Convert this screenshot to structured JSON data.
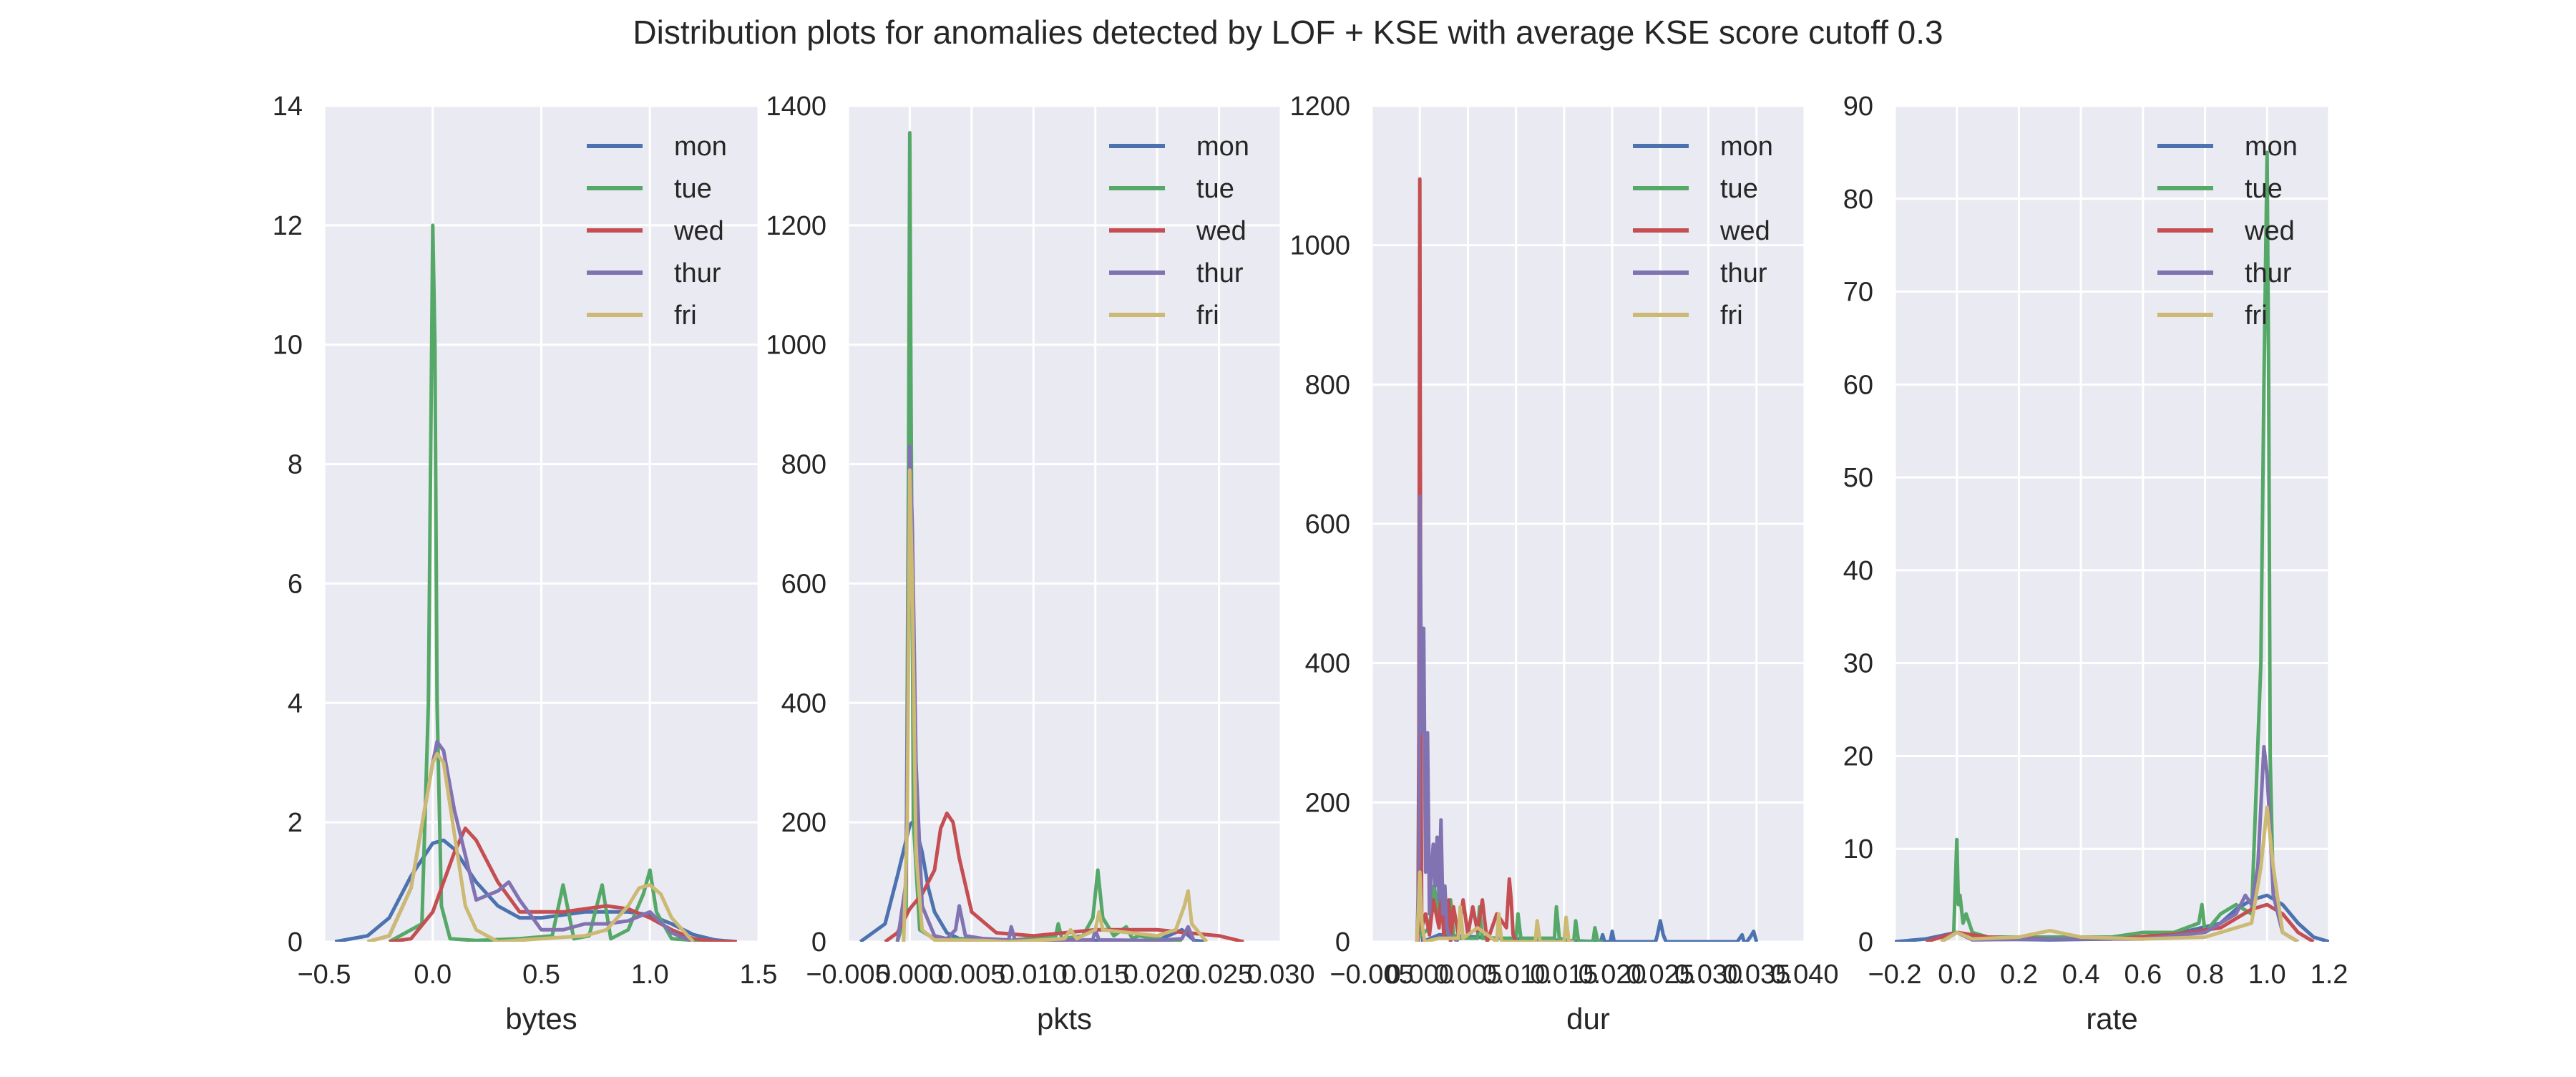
{
  "figure": {
    "title": "Distribution plots for anomalies detected by LOF + KSE with average KSE score cutoff 0.3"
  },
  "colors": {
    "plot_bg": "#eaeaf2",
    "grid": "#ffffff",
    "text": "#262626",
    "series": {
      "mon": "#4c72b0",
      "tue": "#55a868",
      "wed": "#c44e52",
      "thur": "#8172b2",
      "fri": "#ccb974"
    }
  },
  "chart_data": [
    {
      "type": "line",
      "xlabel": "bytes",
      "ylabel": "",
      "xlim": [
        -0.5,
        1.5
      ],
      "ylim": [
        0,
        14
      ],
      "xticks": [
        -0.5,
        0.0,
        0.5,
        1.0,
        1.5
      ],
      "xtick_labels": [
        "−0.5",
        "0.0",
        "0.5",
        "1.0",
        "1.5"
      ],
      "yticks": [
        0,
        2,
        4,
        6,
        8,
        10,
        12,
        14
      ],
      "ytick_labels": [
        "0",
        "2",
        "4",
        "6",
        "8",
        "10",
        "12",
        "14"
      ],
      "grid": true,
      "legend_position": "top-right",
      "series": [
        {
          "name": "mon",
          "x": [
            -0.45,
            -0.3,
            -0.2,
            -0.1,
            0.0,
            0.05,
            0.1,
            0.2,
            0.3,
            0.4,
            0.5,
            0.6,
            0.7,
            0.8,
            0.9,
            1.0,
            1.1,
            1.2,
            1.3,
            1.4
          ],
          "y": [
            0.0,
            0.1,
            0.4,
            1.1,
            1.65,
            1.7,
            1.55,
            1.0,
            0.6,
            0.4,
            0.4,
            0.45,
            0.5,
            0.5,
            0.5,
            0.45,
            0.3,
            0.12,
            0.03,
            0.0
          ]
        },
        {
          "name": "tue",
          "x": [
            -0.2,
            -0.05,
            -0.02,
            0.0,
            0.01,
            0.02,
            0.04,
            0.08,
            0.2,
            0.4,
            0.55,
            0.6,
            0.65,
            0.72,
            0.78,
            0.82,
            0.9,
            0.97,
            1.0,
            1.03,
            1.1,
            1.3
          ],
          "y": [
            0.0,
            0.3,
            4.0,
            12.0,
            10.0,
            4.0,
            0.6,
            0.05,
            0.02,
            0.05,
            0.1,
            0.95,
            0.05,
            0.1,
            0.95,
            0.05,
            0.2,
            0.8,
            1.2,
            0.5,
            0.05,
            0.0
          ]
        },
        {
          "name": "wed",
          "x": [
            -0.2,
            -0.1,
            0.0,
            0.1,
            0.15,
            0.2,
            0.3,
            0.4,
            0.5,
            0.6,
            0.7,
            0.8,
            0.9,
            1.0,
            1.1,
            1.2,
            1.3,
            1.4
          ],
          "y": [
            0.0,
            0.05,
            0.5,
            1.5,
            1.9,
            1.7,
            1.0,
            0.5,
            0.5,
            0.5,
            0.55,
            0.6,
            0.55,
            0.4,
            0.2,
            0.05,
            0.01,
            0.0
          ]
        },
        {
          "name": "thur",
          "x": [
            -0.3,
            -0.2,
            -0.1,
            0.0,
            0.02,
            0.05,
            0.1,
            0.2,
            0.3,
            0.35,
            0.4,
            0.5,
            0.6,
            0.7,
            0.8,
            0.9,
            1.0,
            1.1,
            1.2
          ],
          "y": [
            0.0,
            0.1,
            0.9,
            3.0,
            3.35,
            3.2,
            2.2,
            0.7,
            0.85,
            1.0,
            0.7,
            0.2,
            0.2,
            0.3,
            0.3,
            0.35,
            0.5,
            0.15,
            0.0
          ]
        },
        {
          "name": "fri",
          "x": [
            -0.3,
            -0.2,
            -0.1,
            0.0,
            0.02,
            0.05,
            0.1,
            0.15,
            0.2,
            0.3,
            0.5,
            0.7,
            0.8,
            0.9,
            0.95,
            1.0,
            1.05,
            1.1,
            1.2
          ],
          "y": [
            0.0,
            0.1,
            0.9,
            3.0,
            3.15,
            3.0,
            1.8,
            0.6,
            0.2,
            0.0,
            0.05,
            0.1,
            0.2,
            0.6,
            0.9,
            0.95,
            0.8,
            0.4,
            0.0
          ]
        }
      ]
    },
    {
      "type": "line",
      "xlabel": "pkts",
      "ylabel": "",
      "xlim": [
        -0.005,
        0.03
      ],
      "ylim": [
        0,
        1400
      ],
      "xticks": [
        -0.005,
        0.0,
        0.005,
        0.01,
        0.015,
        0.02,
        0.025,
        0.03
      ],
      "xtick_labels": [
        "−0.005",
        "0.000",
        "0.005",
        "0.010",
        "0.015",
        "0.020",
        "0.025",
        "0.030"
      ],
      "yticks": [
        0,
        200,
        400,
        600,
        800,
        1000,
        1200,
        1400
      ],
      "ytick_labels": [
        "0",
        "200",
        "400",
        "600",
        "800",
        "1000",
        "1200",
        "1400"
      ],
      "grid": true,
      "legend_position": "top-right",
      "series": [
        {
          "name": "mon",
          "x": [
            -0.004,
            -0.002,
            -0.001,
            0.0,
            0.0002,
            0.0005,
            0.001,
            0.0015,
            0.002,
            0.003,
            0.004,
            0.006,
            0.008,
            0.01,
            0.015,
            0.02,
            0.022,
            0.023,
            0.024
          ],
          "y": [
            0,
            30,
            110,
            195,
            200,
            190,
            150,
            90,
            50,
            15,
            5,
            2,
            1,
            1,
            2,
            2,
            20,
            2,
            0
          ]
        },
        {
          "name": "tue",
          "x": [
            -0.001,
            -0.0003,
            -0.0001,
            0.0,
            0.0001,
            0.0003,
            0.0008,
            0.002,
            0.008,
            0.0118,
            0.012,
            0.0123,
            0.014,
            0.0148,
            0.0152,
            0.0156,
            0.0165,
            0.0175,
            0.018,
            0.0185,
            0.02,
            0.022
          ],
          "y": [
            0,
            50,
            800,
            1355,
            900,
            200,
            20,
            5,
            2,
            10,
            30,
            5,
            10,
            40,
            120,
            40,
            10,
            25,
            5,
            10,
            5,
            0
          ]
        },
        {
          "name": "wed",
          "x": [
            -0.002,
            -0.001,
            0.0,
            0.001,
            0.002,
            0.0025,
            0.003,
            0.0035,
            0.004,
            0.005,
            0.007,
            0.01,
            0.015,
            0.02,
            0.025,
            0.027
          ],
          "y": [
            0,
            15,
            55,
            80,
            120,
            190,
            215,
            200,
            140,
            50,
            15,
            10,
            20,
            20,
            10,
            0
          ]
        },
        {
          "name": "thur",
          "x": [
            -0.001,
            -0.0003,
            0.0,
            0.0002,
            0.0005,
            0.001,
            0.002,
            0.003,
            0.0037,
            0.004,
            0.0045,
            0.006,
            0.008,
            0.0082,
            0.0085,
            0.01,
            0.0148,
            0.015,
            0.0153,
            0.02,
            0.022,
            0.0225,
            0.023
          ],
          "y": [
            0,
            100,
            830,
            700,
            300,
            60,
            10,
            5,
            20,
            60,
            10,
            5,
            3,
            25,
            3,
            2,
            3,
            20,
            3,
            2,
            5,
            25,
            0
          ]
        },
        {
          "name": "fri",
          "x": [
            -0.0005,
            -0.0002,
            0.0,
            0.0002,
            0.0005,
            0.001,
            0.002,
            0.006,
            0.008,
            0.0125,
            0.013,
            0.0135,
            0.015,
            0.0153,
            0.0156,
            0.02,
            0.0215,
            0.0222,
            0.0225,
            0.0228,
            0.024
          ],
          "y": [
            0,
            200,
            790,
            600,
            150,
            20,
            3,
            2,
            0,
            5,
            20,
            5,
            20,
            50,
            20,
            10,
            20,
            60,
            85,
            30,
            0
          ]
        }
      ]
    },
    {
      "type": "line",
      "xlabel": "dur",
      "ylabel": "",
      "xlim": [
        -0.005,
        0.04
      ],
      "ylim": [
        0,
        1200
      ],
      "xticks": [
        -0.005,
        0.0,
        0.005,
        0.01,
        0.015,
        0.02,
        0.025,
        0.03,
        0.035,
        0.04
      ],
      "xtick_labels": [
        "−0.005",
        "0.000",
        "0.005",
        "0.010",
        "0.015",
        "0.020",
        "0.025",
        "0.030",
        "0.035",
        "0.040"
      ],
      "yticks": [
        0,
        200,
        400,
        600,
        800,
        1000,
        1200
      ],
      "ytick_labels": [
        "0",
        "200",
        "400",
        "600",
        "800",
        "1000",
        "1200"
      ],
      "grid": true,
      "legend_position": "top-right",
      "series": [
        {
          "name": "mon",
          "x": [
            -0.0003,
            -0.0001,
            0.0,
            0.0001,
            0.0003,
            0.002,
            0.008,
            0.0188,
            0.019,
            0.0192,
            0.0198,
            0.02,
            0.0202,
            0.0245,
            0.0247,
            0.025,
            0.0253,
            0.0256,
            0.026,
            0.033,
            0.0335,
            0.0337,
            0.034,
            0.0345,
            0.0347,
            0.035
          ],
          "y": [
            0,
            20,
            100,
            20,
            0,
            10,
            5,
            0,
            10,
            0,
            0,
            15,
            0,
            0,
            10,
            30,
            10,
            0,
            0,
            0,
            10,
            0,
            0,
            10,
            15,
            0
          ]
        },
        {
          "name": "tue",
          "x": [
            -0.0003,
            0.0,
            0.0002,
            0.001,
            0.0015,
            0.002,
            0.0022,
            0.0025,
            0.003,
            0.0032,
            0.0035,
            0.004,
            0.006,
            0.0062,
            0.0065,
            0.01,
            0.0102,
            0.0105,
            0.014,
            0.0142,
            0.0145,
            0.016,
            0.0162,
            0.0165,
            0.018,
            0.0182,
            0.0185,
            0.019
          ],
          "y": [
            0,
            60,
            10,
            20,
            80,
            30,
            90,
            20,
            10,
            60,
            10,
            5,
            5,
            50,
            5,
            5,
            40,
            5,
            5,
            50,
            5,
            0,
            30,
            0,
            0,
            20,
            0,
            0
          ]
        },
        {
          "name": "wed",
          "x": [
            -0.0002,
            -0.0001,
            0.0,
            0.0001,
            0.0002,
            0.0006,
            0.001,
            0.0014,
            0.002,
            0.0022,
            0.0025,
            0.003,
            0.0032,
            0.0035,
            0.004,
            0.0045,
            0.005,
            0.0055,
            0.006,
            0.0065,
            0.007,
            0.008,
            0.009,
            0.0093,
            0.0095,
            0.0097,
            0.01
          ],
          "y": [
            0,
            300,
            1095,
            300,
            20,
            40,
            10,
            60,
            20,
            70,
            10,
            60,
            0,
            50,
            10,
            60,
            10,
            50,
            15,
            60,
            0,
            40,
            20,
            90,
            60,
            10,
            0
          ]
        },
        {
          "name": "thur",
          "x": [
            -0.0003,
            -0.0001,
            0.0,
            0.0002,
            0.0004,
            0.0006,
            0.0008,
            0.001,
            0.0012,
            0.0014,
            0.0016,
            0.0018,
            0.002,
            0.0022,
            0.0024,
            0.0026,
            0.0028,
            0.003,
            0.0035,
            0.004
          ],
          "y": [
            0,
            100,
            640,
            300,
            450,
            100,
            300,
            40,
            100,
            140,
            80,
            150,
            60,
            175,
            40,
            80,
            20,
            10,
            5,
            0
          ]
        },
        {
          "name": "fri",
          "x": [
            -0.0003,
            -0.0001,
            0.0,
            0.0002,
            0.0005,
            0.002,
            0.004,
            0.0042,
            0.0045,
            0.006,
            0.008,
            0.0082,
            0.0085,
            0.012,
            0.0122,
            0.0125,
            0.015,
            0.0152,
            0.0155,
            0.016
          ],
          "y": [
            0,
            60,
            100,
            30,
            0,
            5,
            5,
            50,
            5,
            20,
            0,
            40,
            0,
            0,
            30,
            0,
            0,
            35,
            0,
            0
          ]
        }
      ]
    },
    {
      "type": "line",
      "xlabel": "rate",
      "ylabel": "",
      "xlim": [
        -0.2,
        1.2
      ],
      "ylim": [
        0,
        90
      ],
      "xticks": [
        -0.2,
        0.0,
        0.2,
        0.4,
        0.6,
        0.8,
        1.0,
        1.2
      ],
      "xtick_labels": [
        "−0.2",
        "0.0",
        "0.2",
        "0.4",
        "0.6",
        "0.8",
        "1.0",
        "1.2"
      ],
      "yticks": [
        0,
        10,
        20,
        30,
        40,
        50,
        60,
        70,
        80,
        90
      ],
      "ytick_labels": [
        "0",
        "10",
        "20",
        "30",
        "40",
        "50",
        "60",
        "70",
        "80",
        "90"
      ],
      "grid": true,
      "legend_position": "top-right",
      "series": [
        {
          "name": "mon",
          "x": [
            -0.2,
            -0.1,
            0.0,
            0.1,
            0.3,
            0.5,
            0.7,
            0.85,
            0.9,
            0.95,
            1.0,
            1.05,
            1.1,
            1.15,
            1.2
          ],
          "y": [
            0,
            0.3,
            1.0,
            0.3,
            0.2,
            0.3,
            0.8,
            2.0,
            3.5,
            4.5,
            5.0,
            4.0,
            2.0,
            0.5,
            0
          ]
        },
        {
          "name": "tue",
          "x": [
            -0.05,
            -0.01,
            0.0,
            0.005,
            0.01,
            0.02,
            0.03,
            0.05,
            0.1,
            0.3,
            0.5,
            0.6,
            0.7,
            0.78,
            0.79,
            0.8,
            0.85,
            0.9,
            0.95,
            0.98,
            0.99,
            1.0,
            1.005,
            1.01,
            1.02,
            1.05,
            1.1
          ],
          "y": [
            0,
            1,
            11,
            4,
            5,
            2,
            3,
            1,
            0.5,
            0.5,
            0.5,
            1,
            1,
            2,
            4,
            1,
            3,
            4,
            3,
            30,
            60,
            85,
            60,
            20,
            5,
            1,
            0
          ]
        },
        {
          "name": "wed",
          "x": [
            -0.1,
            0.0,
            0.1,
            0.3,
            0.5,
            0.7,
            0.85,
            0.9,
            0.95,
            1.0,
            1.05,
            1.1,
            1.15
          ],
          "y": [
            0,
            1,
            0.5,
            0.3,
            0.3,
            0.8,
            1.5,
            2.5,
            3.5,
            4.0,
            3.0,
            1.0,
            0
          ]
        },
        {
          "name": "thur",
          "x": [
            -0.05,
            0.0,
            0.05,
            0.3,
            0.6,
            0.8,
            0.9,
            0.93,
            0.95,
            0.97,
            0.99,
            1.0,
            1.01,
            1.02,
            1.05,
            1.1
          ],
          "y": [
            0,
            1,
            0.2,
            0.3,
            0.3,
            1,
            3,
            5,
            4,
            8,
            21,
            18,
            12,
            5,
            1,
            0
          ]
        },
        {
          "name": "fri",
          "x": [
            -0.05,
            0.0,
            0.05,
            0.2,
            0.3,
            0.4,
            0.6,
            0.8,
            0.95,
            0.98,
            1.0,
            1.02,
            1.05,
            1.1
          ],
          "y": [
            0,
            1,
            0.3,
            0.5,
            1.2,
            0.5,
            0.3,
            0.5,
            2,
            8,
            14.5,
            8,
            1,
            0
          ]
        }
      ]
    }
  ]
}
